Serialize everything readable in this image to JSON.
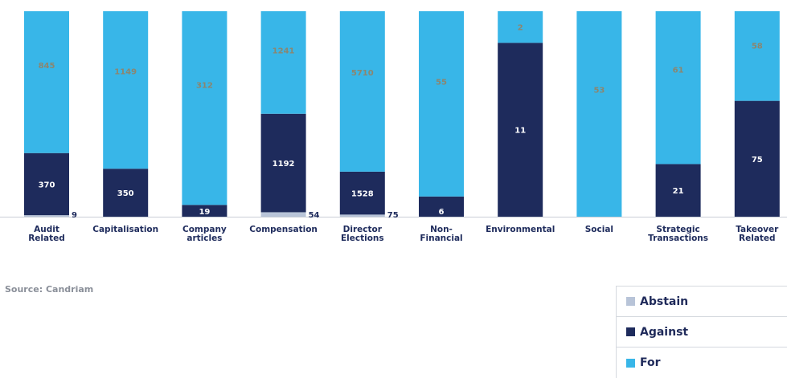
{
  "chart_data": {
    "type": "bar",
    "stacked": "percent",
    "categories": [
      [
        "Audit",
        "Related"
      ],
      [
        "Capitalisation"
      ],
      [
        "Company",
        "articles"
      ],
      [
        "Compensation"
      ],
      [
        "Director",
        "Elections"
      ],
      [
        "Non-",
        "Financial"
      ],
      [
        "Environmental"
      ],
      [
        "Social"
      ],
      [
        "Strategic",
        "Transactions"
      ],
      [
        "Takeover",
        "Related"
      ]
    ],
    "series": [
      {
        "name": "Abstain",
        "color": "#b8c4d8",
        "values": [
          9,
          0,
          0,
          54,
          75,
          0,
          0,
          0,
          0,
          0
        ]
      },
      {
        "name": "Against",
        "color": "#1e2b5c",
        "values": [
          370,
          350,
          19,
          1192,
          1528,
          6,
          11,
          0,
          21,
          75
        ]
      },
      {
        "name": "For",
        "color": "#38b6e8",
        "values": [
          845,
          1149,
          312,
          1241,
          5710,
          55,
          2,
          53,
          61,
          58
        ]
      }
    ],
    "ylim": [
      0,
      100
    ]
  },
  "source": "Source: Candriam",
  "legend": [
    {
      "label": "Abstain",
      "color": "#b8c4d8"
    },
    {
      "label": "Against",
      "color": "#1e2b5c"
    },
    {
      "label": "For",
      "color": "#38b6e8"
    }
  ]
}
